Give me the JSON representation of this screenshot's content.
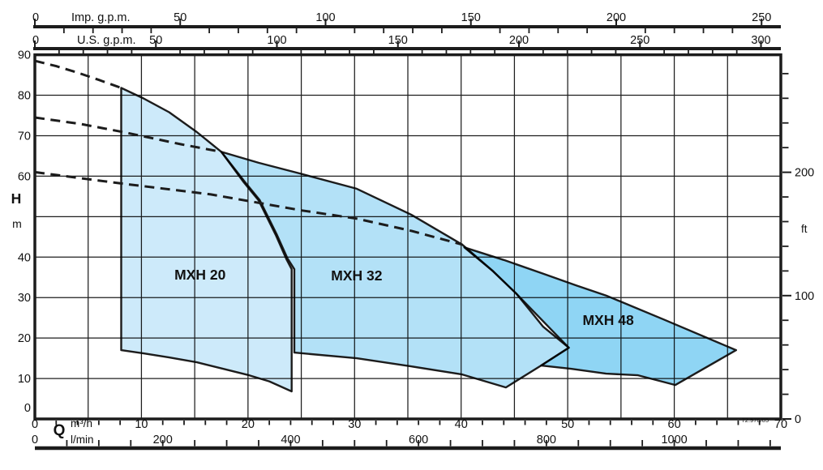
{
  "chart_data": {
    "type": "area",
    "title": "",
    "description": "Pump performance envelope chart: head H (m / ft) versus flow Q (m3/h, l/min, Imp. g.p.m., U.S. g.p.m.) for three pump model families",
    "note": "72.978/05",
    "x_range_m3h": [
      0,
      70
    ],
    "y_range_m": [
      0,
      90
    ],
    "grid": {
      "x_step_m3h": 5,
      "y_step_m": 10
    },
    "colors": {
      "outline": "#1c1c1c",
      "grid": "#1e1e1e",
      "axis": "#111111",
      "label_text": "#26333f",
      "note_text": "#333333"
    },
    "x_axes": [
      {
        "id": "imp_gpm",
        "label": "Imp. g.p.m.",
        "factor_to_m3h": 0.272765,
        "majors": [
          0,
          50,
          100,
          150,
          200,
          250
        ],
        "minor_step": 10,
        "minor_max": 250
      },
      {
        "id": "us_gpm",
        "label": "U.S. g.p.m.",
        "factor_to_m3h": 0.227125,
        "majors": [
          0,
          50,
          100,
          150,
          200,
          250,
          300
        ],
        "minor_step": 10,
        "minor_max": 300
      },
      {
        "id": "m3h",
        "label": "m³/h",
        "factor_to_m3h": 1,
        "majors": [
          0,
          10,
          20,
          30,
          40,
          50,
          60,
          70
        ],
        "minor_step": 2,
        "minor_max": 68
      },
      {
        "id": "lmin",
        "label": "l/min",
        "factor_to_m3h": 0.06,
        "majors": [
          0,
          200,
          400,
          600,
          800,
          1000
        ],
        "minor_step": 50,
        "minor_max": 1150
      }
    ],
    "y_axes": [
      {
        "id": "h_m",
        "label": "H",
        "unit": "m",
        "majors": [
          90,
          80,
          70,
          60,
          40,
          30,
          20,
          10,
          0
        ]
      },
      {
        "id": "ft",
        "label": "ft",
        "factor_to_m": 0.3048,
        "majors": [
          200,
          100,
          0
        ],
        "minor_step": 20,
        "minor_max": 280
      }
    ],
    "flow_axis_label": "Q",
    "regions": [
      {
        "name": "MXH 20",
        "fill": "#cdeafa",
        "label_pos": [
          15.5,
          35.6
        ],
        "points": [
          [
            8.1,
            17
          ],
          [
            8.1,
            81.8
          ],
          [
            10.2,
            79.2
          ],
          [
            12.6,
            75.8
          ],
          [
            15.2,
            70.9
          ],
          [
            17.5,
            66.0
          ],
          [
            19.6,
            58.5
          ],
          [
            21.0,
            54.0
          ],
          [
            22.6,
            45.5
          ],
          [
            23.6,
            39.5
          ],
          [
            24.1,
            37.0
          ],
          [
            24.1,
            6.8
          ],
          [
            22.0,
            9.3
          ],
          [
            20.1,
            10.8
          ],
          [
            17.5,
            12.5
          ],
          [
            15.2,
            14.0
          ],
          [
            12.6,
            15.2
          ],
          [
            10.2,
            16.2
          ]
        ]
      },
      {
        "name": "MXH 32",
        "fill": "#b3e1f7",
        "label_pos": [
          30.2,
          35.4
        ],
        "points": [
          [
            17.5,
            66.0
          ],
          [
            21.0,
            63.3
          ],
          [
            25.1,
            60.5
          ],
          [
            30.2,
            56.9
          ],
          [
            35.3,
            50.5
          ],
          [
            40.1,
            43.1
          ],
          [
            43.0,
            36.5
          ],
          [
            45.2,
            30.9
          ],
          [
            47.7,
            22.8
          ],
          [
            50.1,
            17.6
          ],
          [
            47.5,
            13.2
          ],
          [
            44.2,
            7.8
          ],
          [
            40.1,
            11.0
          ],
          [
            35.3,
            13.0
          ],
          [
            30.2,
            15.0
          ],
          [
            24.35,
            16.4
          ],
          [
            24.35,
            37.0
          ],
          [
            23.7,
            39.7
          ],
          [
            22.7,
            45.6
          ],
          [
            21.1,
            54.1
          ],
          [
            19.7,
            58.6
          ]
        ]
      },
      {
        "name": "MXH 48",
        "fill": "#8fd5f4",
        "label_pos": [
          53.8,
          24.4
        ],
        "points": [
          [
            40.3,
            42.4
          ],
          [
            44.0,
            39.3
          ],
          [
            47.7,
            35.9
          ],
          [
            50.8,
            33.0
          ],
          [
            53.6,
            30.5
          ],
          [
            59.0,
            24.6
          ],
          [
            65.8,
            17.0
          ],
          [
            60.1,
            8.4
          ],
          [
            56.6,
            10.8
          ],
          [
            53.6,
            11.2
          ],
          [
            50.3,
            12.4
          ],
          [
            47.5,
            13.2
          ],
          [
            50.1,
            17.6
          ],
          [
            45.2,
            30.9
          ],
          [
            43.0,
            36.5
          ]
        ]
      }
    ],
    "dashed_curves": [
      {
        "name": "mxh-20-extrapolation",
        "points": [
          [
            0,
            88.5
          ],
          [
            2,
            87.2
          ],
          [
            4,
            85.6
          ],
          [
            6,
            83.8
          ],
          [
            8.1,
            81.8
          ]
        ]
      },
      {
        "name": "mxh-32-extrapolation",
        "points": [
          [
            0,
            74.5
          ],
          [
            4.3,
            72.9
          ],
          [
            8.3,
            70.9
          ],
          [
            13.7,
            67.9
          ],
          [
            17.5,
            66.0
          ]
        ]
      },
      {
        "name": "mxh-48-extrapolation",
        "points": [
          [
            0,
            61.0
          ],
          [
            4.3,
            59.5
          ],
          [
            8.4,
            58.1
          ],
          [
            16.5,
            55.5
          ],
          [
            25.1,
            51.5
          ],
          [
            30.2,
            49.5
          ],
          [
            35.3,
            46.5
          ],
          [
            40.1,
            43.1
          ]
        ]
      }
    ]
  }
}
